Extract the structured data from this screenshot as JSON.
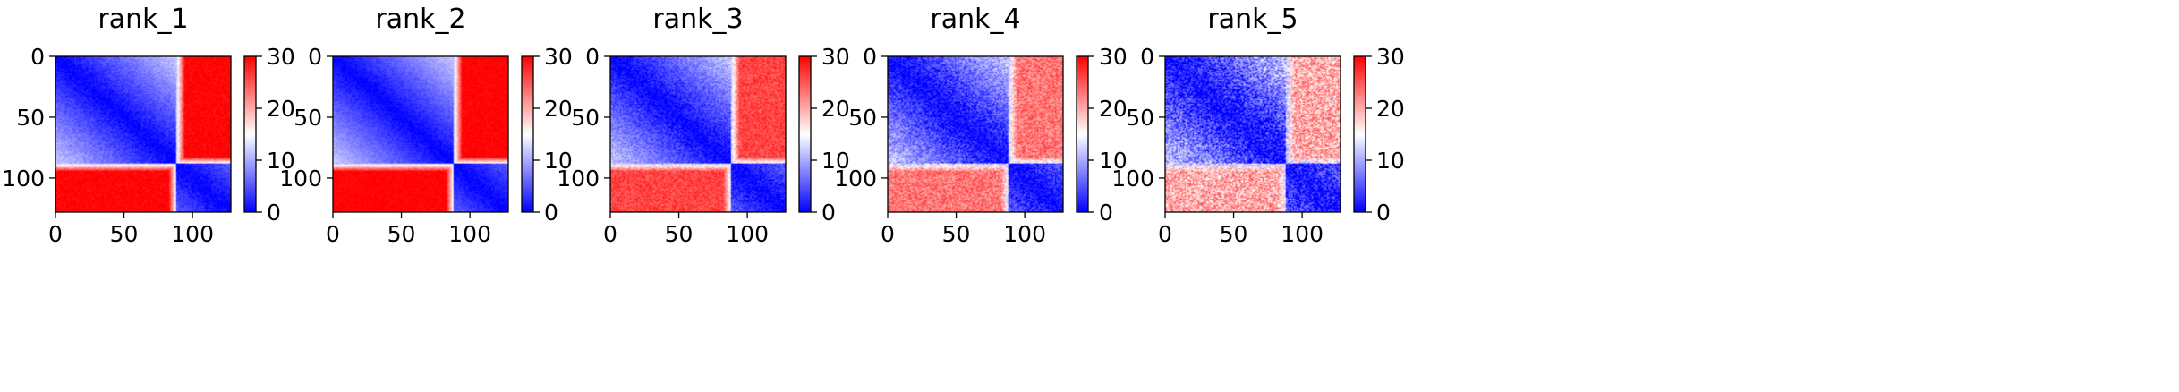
{
  "chart_data": [
    {
      "type": "heatmap",
      "title": "rank_1",
      "matrix_size": 128,
      "block_split": 88,
      "x_ticks": [
        "0",
        "50",
        "100"
      ],
      "y_ticks": [
        "0",
        "50",
        "100"
      ],
      "colorbar": {
        "min": 0,
        "max": 30,
        "ticks": [
          "0",
          "10",
          "20",
          "30"
        ],
        "colormap": "bwr"
      },
      "pattern": {
        "diagonal_gradient_max": 12,
        "off_block_value": 30,
        "noise": 0.05
      }
    },
    {
      "type": "heatmap",
      "title": "rank_2",
      "matrix_size": 128,
      "block_split": 88,
      "x_ticks": [
        "0",
        "50",
        "100"
      ],
      "y_ticks": [
        "0",
        "50",
        "100"
      ],
      "colorbar": {
        "min": 0,
        "max": 30,
        "ticks": [
          "0",
          "10",
          "20",
          "30"
        ],
        "colormap": "bwr"
      },
      "pattern": {
        "diagonal_gradient_max": 12,
        "off_block_value": 30,
        "noise": 0.04
      }
    },
    {
      "type": "heatmap",
      "title": "rank_3",
      "matrix_size": 128,
      "block_split": 88,
      "x_ticks": [
        "0",
        "50",
        "100"
      ],
      "y_ticks": [
        "0",
        "50",
        "100"
      ],
      "colorbar": {
        "min": 0,
        "max": 30,
        "ticks": [
          "0",
          "10",
          "20",
          "30"
        ],
        "colormap": "bwr"
      },
      "pattern": {
        "diagonal_gradient_max": 12,
        "off_block_value": 26,
        "noise": 0.08
      }
    },
    {
      "type": "heatmap",
      "title": "rank_4",
      "matrix_size": 128,
      "block_split": 88,
      "x_ticks": [
        "0",
        "50",
        "100"
      ],
      "y_ticks": [
        "0",
        "50",
        "100"
      ],
      "colorbar": {
        "min": 0,
        "max": 30,
        "ticks": [
          "0",
          "10",
          "20",
          "30"
        ],
        "colormap": "bwr"
      },
      "pattern": {
        "diagonal_gradient_max": 12,
        "off_block_value": 23,
        "noise": 0.12
      }
    },
    {
      "type": "heatmap",
      "title": "rank_5",
      "matrix_size": 128,
      "block_split": 88,
      "x_ticks": [
        "0",
        "50",
        "100"
      ],
      "y_ticks": [
        "0",
        "50",
        "100"
      ],
      "colorbar": {
        "min": 0,
        "max": 30,
        "ticks": [
          "0",
          "10",
          "20",
          "30"
        ],
        "colormap": "bwr"
      },
      "pattern": {
        "diagonal_gradient_max": 12,
        "off_block_value": 20,
        "noise": 0.18
      }
    }
  ]
}
